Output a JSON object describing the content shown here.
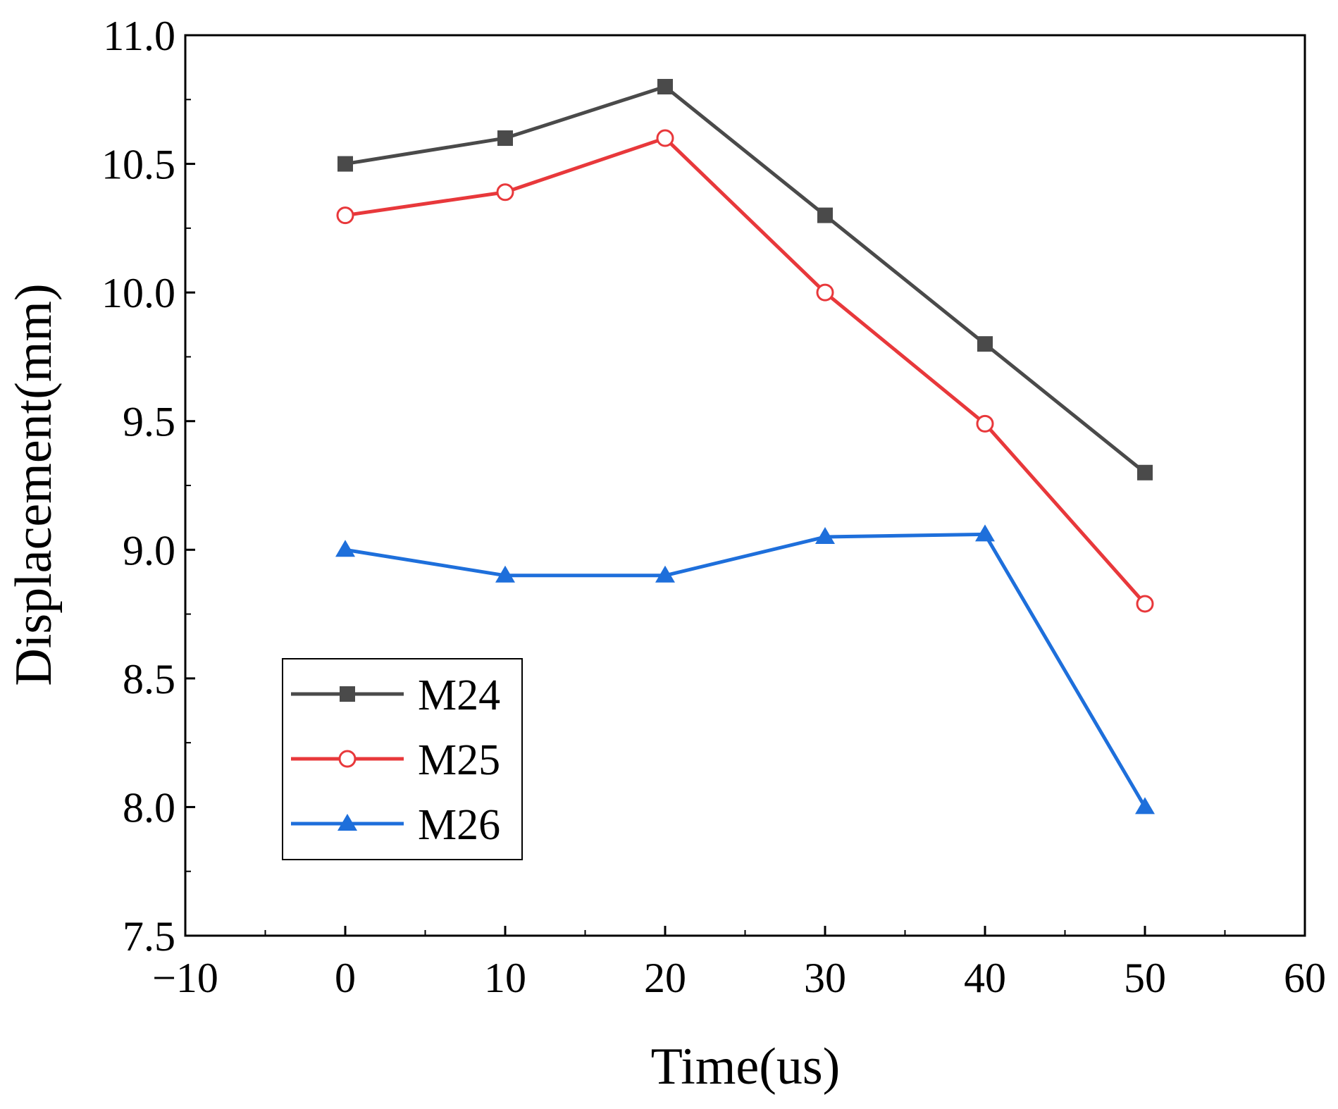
{
  "chart_data": {
    "type": "line",
    "title": "",
    "xlabel": "Time(us)",
    "ylabel": "Displacement(mm)",
    "xlim": [
      -10,
      60
    ],
    "ylim": [
      7.5,
      11.0
    ],
    "xticks": [
      -10,
      0,
      10,
      20,
      30,
      40,
      50,
      60
    ],
    "xtick_labels": [
      "−10",
      "0",
      "10",
      "20",
      "30",
      "40",
      "50",
      "60"
    ],
    "yticks": [
      7.5,
      8.0,
      8.5,
      9.0,
      9.5,
      10.0,
      10.5,
      11.0
    ],
    "ytick_labels": [
      "7.5",
      "8.0",
      "8.5",
      "9.0",
      "9.5",
      "10.0",
      "10.5",
      "11.0"
    ],
    "grid": false,
    "legend_position": "bottom-left",
    "x": [
      0,
      10,
      20,
      30,
      40,
      50
    ],
    "series": [
      {
        "name": "M24",
        "color": "#4a4a4a",
        "marker": "square-filled",
        "values": [
          10.5,
          10.6,
          10.8,
          10.3,
          9.8,
          9.3
        ]
      },
      {
        "name": "M25",
        "color": "#e8383b",
        "marker": "circle-open",
        "values": [
          10.3,
          10.39,
          10.6,
          10.0,
          9.49,
          8.79
        ]
      },
      {
        "name": "M26",
        "color": "#1e6fdb",
        "marker": "triangle-filled",
        "values": [
          9.0,
          8.9,
          8.9,
          9.05,
          9.06,
          8.0
        ]
      }
    ]
  }
}
